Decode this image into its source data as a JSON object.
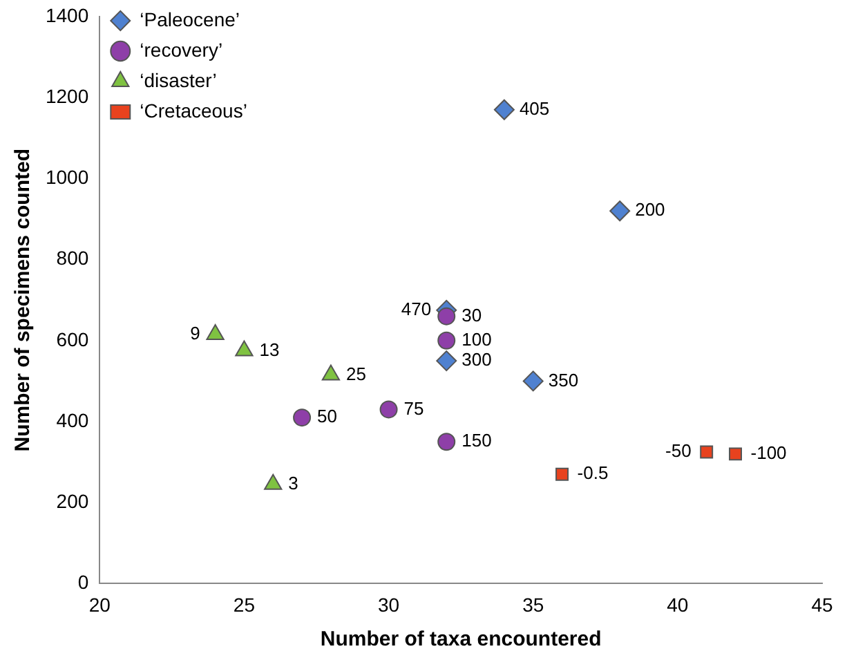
{
  "chart_data": {
    "type": "scatter",
    "xlabel": "Number of taxa encountered",
    "ylabel": "Number of specimens counted",
    "xlim": [
      20,
      45
    ],
    "xticks": [
      20,
      25,
      30,
      35,
      40,
      45
    ],
    "ylim": [
      0,
      1400
    ],
    "yticks": [
      0,
      200,
      400,
      600,
      800,
      1000,
      1200,
      1400
    ],
    "grid": false,
    "legend": "top left",
    "series": [
      {
        "name": "‘Paleocene’",
        "color": "#4f81d0",
        "marker": "diamond",
        "x": [
          34,
          38,
          32,
          32,
          35
        ],
        "values": [
          1170,
          920,
          675,
          550,
          500
        ]
      },
      {
        "name": "‘recovery’",
        "color": "#8e3fa8",
        "marker": "circle",
        "x": [
          32,
          32,
          27,
          30,
          32
        ],
        "values": [
          660,
          600,
          410,
          430,
          350
        ]
      },
      {
        "name": "‘disaster’",
        "color": "#7fc241",
        "marker": "triangle",
        "x": [
          24,
          25,
          28,
          26
        ],
        "values": [
          615,
          575,
          515,
          245
        ]
      },
      {
        "name": "‘Cretaceous’",
        "color": "#e8421e",
        "marker": "square",
        "x": [
          36,
          41,
          42
        ],
        "values": [
          270,
          325,
          320
        ]
      }
    ],
    "annotations": [
      {
        "text": "405",
        "x": 34,
        "y": 1170
      },
      {
        "text": "200",
        "x": 38,
        "y": 920
      },
      {
        "text": "30",
        "x": 32,
        "y": 660
      },
      {
        "text": "470",
        "x": 32,
        "y": 675
      },
      {
        "text": "300",
        "x": 32,
        "y": 550
      },
      {
        "text": "350",
        "x": 35,
        "y": 500
      },
      {
        "text": "100",
        "x": 32,
        "y": 600
      },
      {
        "text": "50",
        "x": 27,
        "y": 410
      },
      {
        "text": "75",
        "x": 30,
        "y": 430
      },
      {
        "text": "150",
        "x": 32,
        "y": 350
      },
      {
        "text": "9",
        "x": 24,
        "y": 615
      },
      {
        "text": "13",
        "x": 25,
        "y": 575
      },
      {
        "text": "25",
        "x": 28,
        "y": 515
      },
      {
        "text": "3",
        "x": 26,
        "y": 245
      },
      {
        "text": "-0.5",
        "x": 36,
        "y": 270
      },
      {
        "text": "-100",
        "x": 42,
        "y": 320
      },
      {
        "text": "-50",
        "x": 41,
        "y": 325
      }
    ]
  }
}
